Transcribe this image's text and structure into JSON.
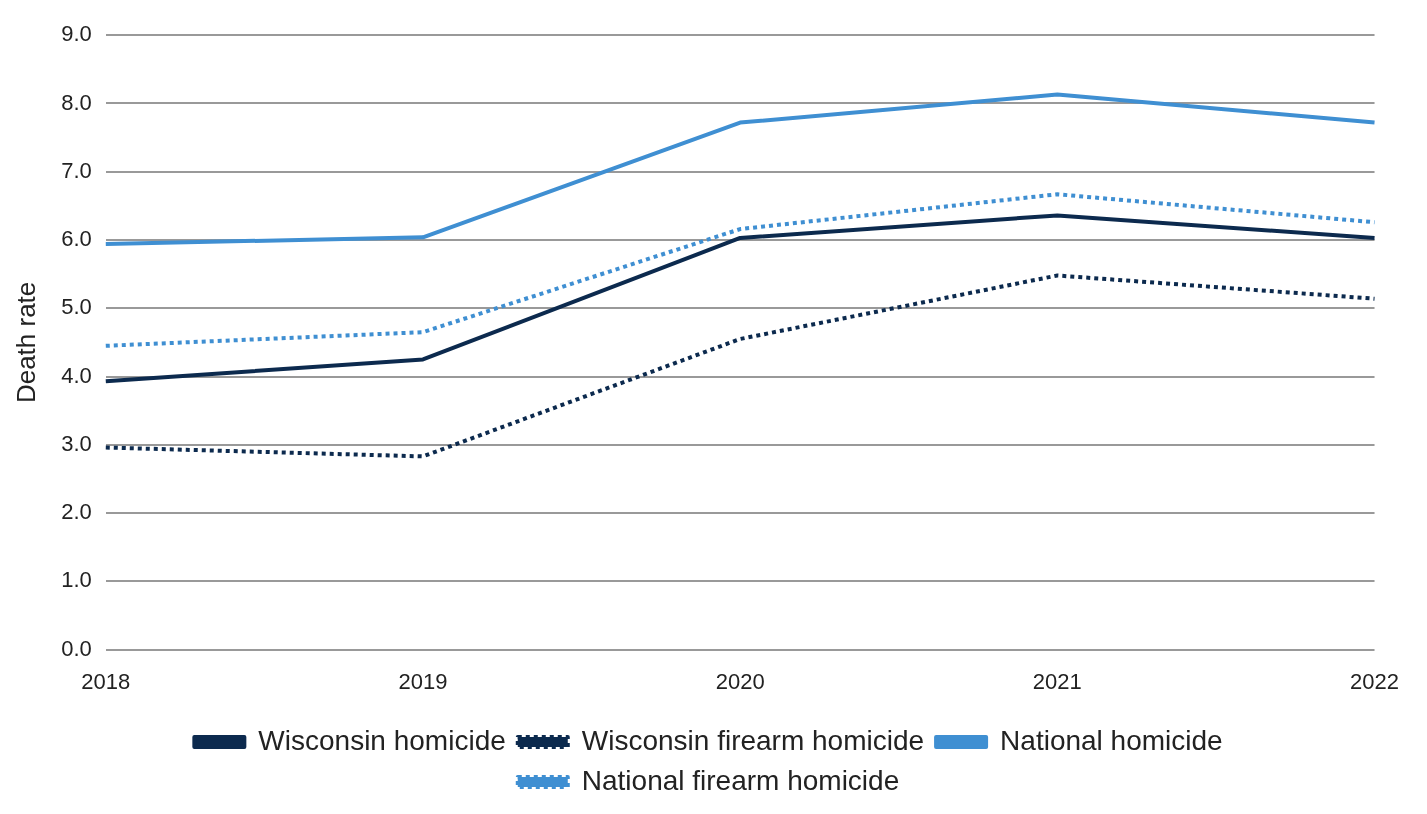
{
  "chart_data": {
    "type": "line",
    "ylabel": "Death rate",
    "categories": [
      "2018",
      "2019",
      "2020",
      "2021",
      "2022"
    ],
    "series": [
      {
        "name": "Wisconsin homicide",
        "color": "#0c2a4e",
        "line_style": "solid",
        "values": [
          3.93,
          4.25,
          6.03,
          6.36,
          6.03
        ]
      },
      {
        "name": "Wisconsin firearm homicide",
        "color": "#0c2a4e",
        "line_style": "dotted",
        "values": [
          2.96,
          2.83,
          4.55,
          5.48,
          5.14
        ]
      },
      {
        "name": "National homicide",
        "color": "#3f8fd2",
        "line_style": "solid",
        "values": [
          5.94,
          6.04,
          7.72,
          8.13,
          7.72
        ]
      },
      {
        "name": "National firearm homicide",
        "color": "#3f8fd2",
        "line_style": "dotted",
        "values": [
          4.45,
          4.65,
          6.16,
          6.67,
          6.26
        ]
      }
    ],
    "ylim": [
      0,
      9
    ],
    "yticks": [
      {
        "value": 0,
        "label": "0.0"
      },
      {
        "value": 1,
        "label": "1.0"
      },
      {
        "value": 2,
        "label": "2.0"
      },
      {
        "value": 3,
        "label": "3.0"
      },
      {
        "value": 4,
        "label": "4.0"
      },
      {
        "value": 5,
        "label": "5.0"
      },
      {
        "value": 6,
        "label": "6.0"
      },
      {
        "value": 7,
        "label": "7.0"
      },
      {
        "value": 8,
        "label": "8.0"
      },
      {
        "value": 9,
        "label": "9.0"
      }
    ],
    "grid": "y",
    "legend": "bottom",
    "marker": "none"
  }
}
